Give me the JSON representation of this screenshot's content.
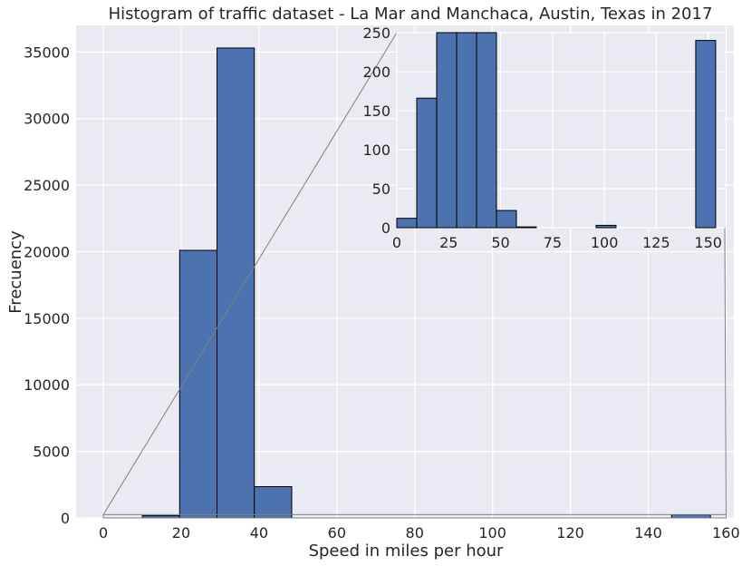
{
  "chart_data": [
    {
      "type": "bar",
      "role": "main",
      "title": "Histogram of traffic dataset - La Mar and Manchaca, Austin, Texas in 2017",
      "xlabel": "Speed in miles per hour",
      "ylabel": "Frecuency",
      "xlim": [
        -7,
        162
      ],
      "ylim": [
        0,
        37000
      ],
      "xticks": [
        "0",
        "20",
        "40",
        "60",
        "80",
        "100",
        "120",
        "140",
        "160"
      ],
      "yticks": [
        "0",
        "5000",
        "10000",
        "15000",
        "20000",
        "25000",
        "30000",
        "35000"
      ],
      "bins": [
        [
          10,
          19.6,
          165
        ],
        [
          19.6,
          29.2,
          20100
        ],
        [
          29.2,
          38.8,
          35300
        ],
        [
          38.8,
          48.4,
          2350
        ],
        [
          146,
          156,
          238
        ]
      ],
      "grid": true,
      "colors": {
        "bar": "#4c72b0",
        "background": "#eaeaf2",
        "grid": "#ffffff",
        "connector": "#808080"
      }
    },
    {
      "type": "bar",
      "role": "inset-zoom",
      "xlim": [
        0,
        158
      ],
      "ylim": [
        0,
        250
      ],
      "xticks": [
        "0",
        "25",
        "50",
        "75",
        "100",
        "125",
        "150"
      ],
      "yticks": [
        "0",
        "50",
        "100",
        "150",
        "200",
        "250"
      ],
      "bins": [
        [
          0,
          9.6,
          12
        ],
        [
          9.6,
          19.2,
          166
        ],
        [
          19.2,
          28.8,
          250
        ],
        [
          28.8,
          38.4,
          250
        ],
        [
          38.4,
          48.0,
          250
        ],
        [
          48.0,
          57.6,
          22
        ],
        [
          57.6,
          67.2,
          1
        ],
        [
          96,
          105.6,
          3
        ],
        [
          144,
          153.6,
          240
        ]
      ],
      "grid": true
    }
  ]
}
